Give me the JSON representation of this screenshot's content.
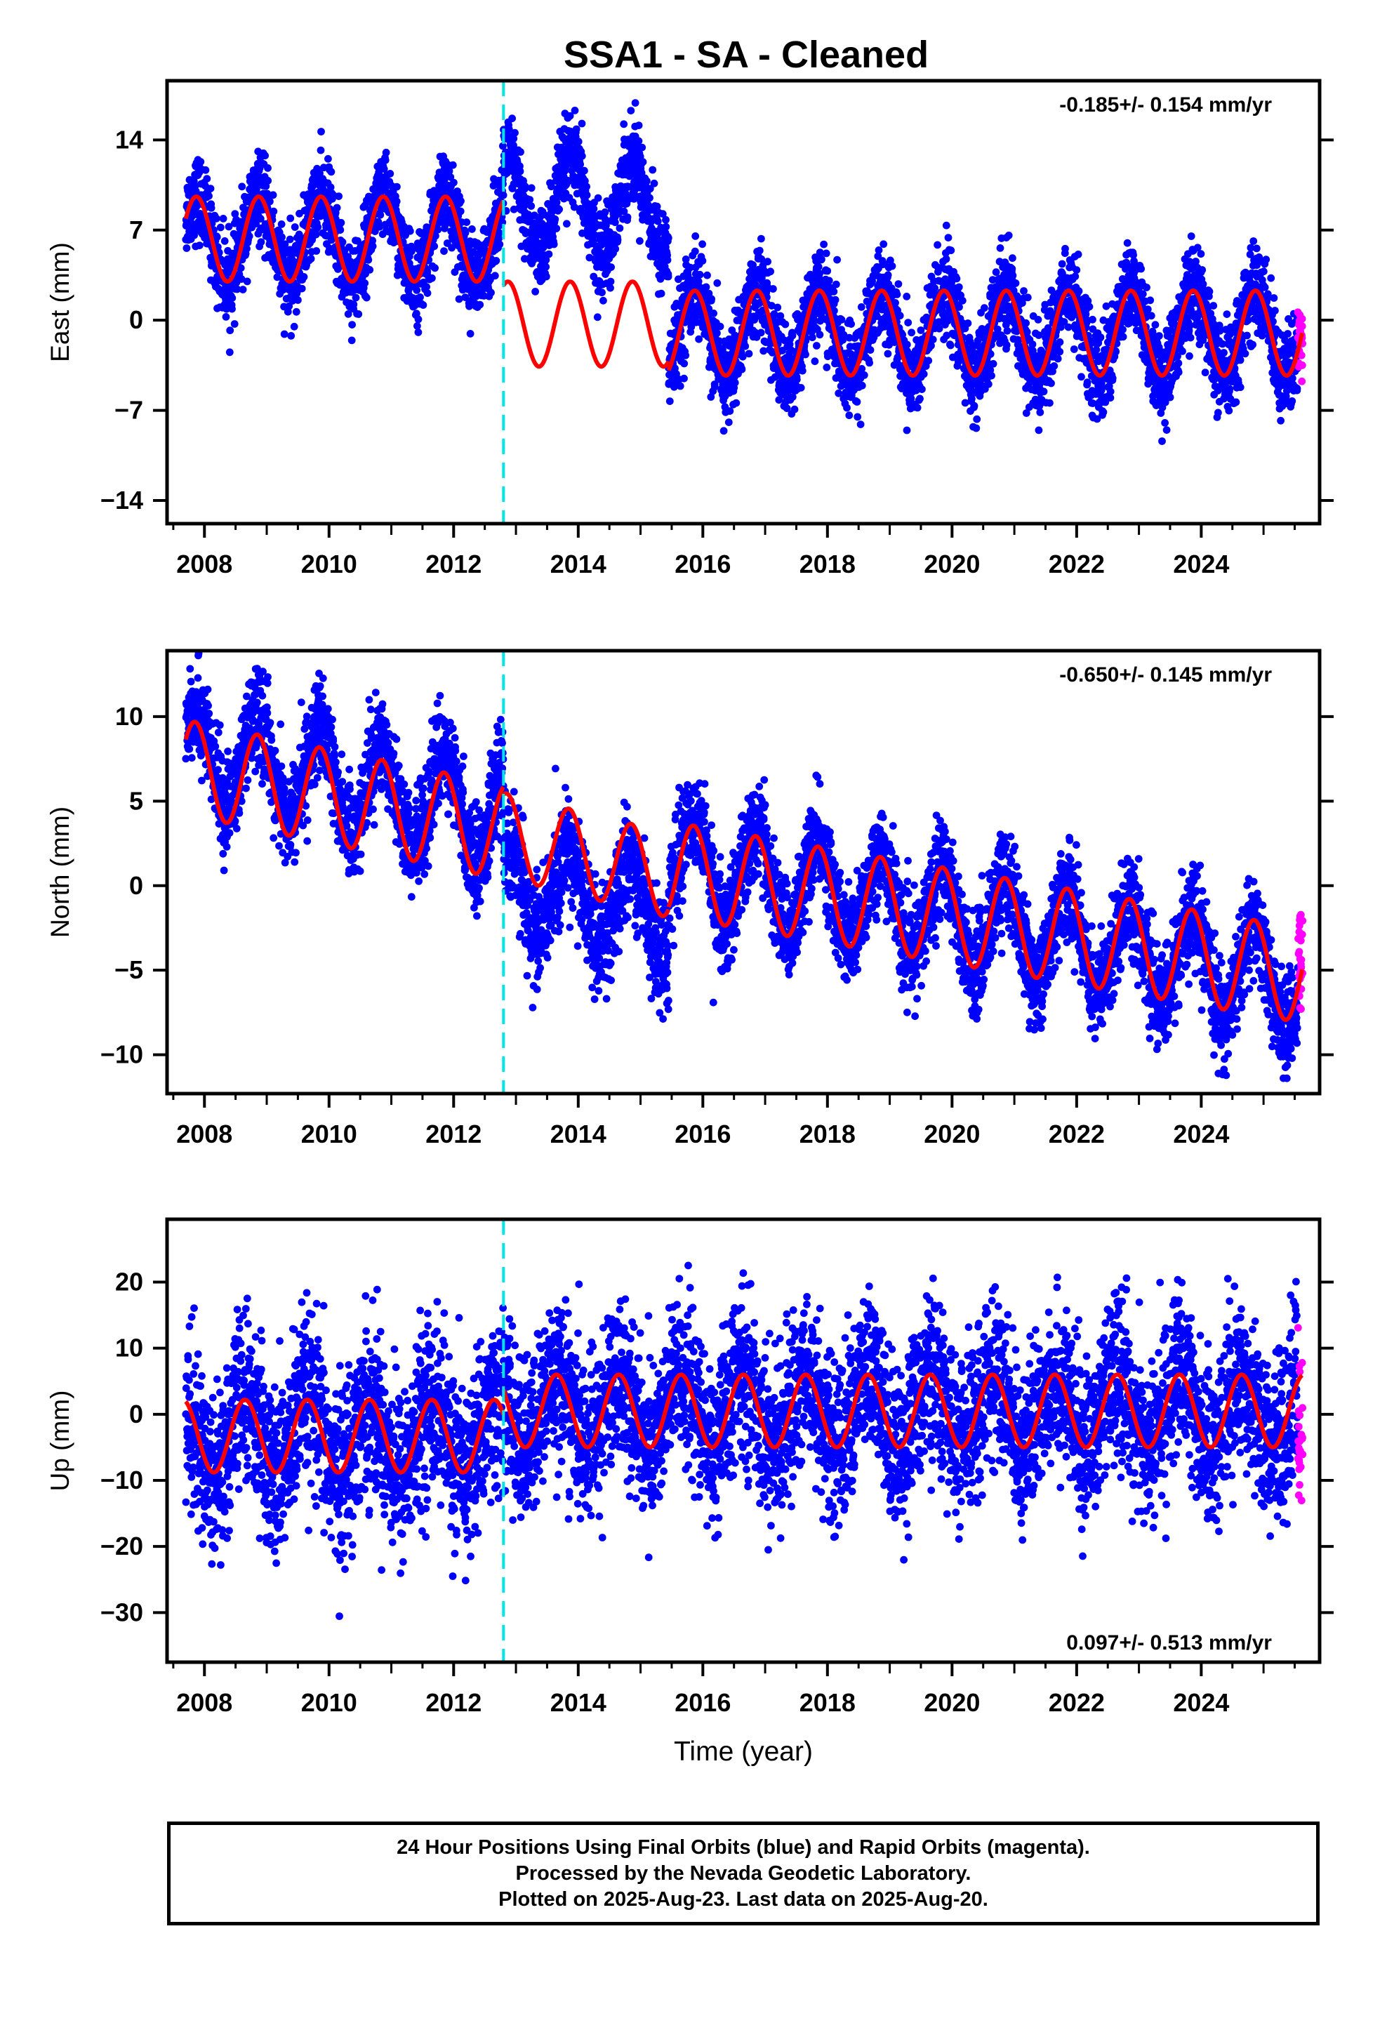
{
  "title": "SSA1  - SA - Cleaned",
  "colors": {
    "final_orbits": "#0000ff",
    "rapid_orbits": "#ff00ff",
    "model_fit": "#ff0000",
    "equipment_change": "#00e5e5"
  },
  "footer": {
    "line1": "24 Hour Positions Using Final Orbits (blue) and Rapid Orbits (magenta).",
    "line2": "Processed by the Nevada Geodetic Laboratory.",
    "line3": "Plotted on 2025-Aug-23. Last data on 2025-Aug-20."
  },
  "chart_data": [
    {
      "type": "scatter",
      "component": "east",
      "title": "",
      "xlabel": "",
      "ylabel": "East (mm)",
      "rate_label": "-0.185+/- 0.154 mm/yr",
      "xlim": [
        2007.4,
        2025.9
      ],
      "ylim": [
        -15.8,
        18.6
      ],
      "yticks": [
        14,
        7,
        0,
        -7,
        -14
      ],
      "xticks": [
        2008,
        2010,
        2012,
        2014,
        2016,
        2018,
        2020,
        2022,
        2024
      ],
      "equipment_change_year": 2012.8,
      "series": [
        {
          "name": "Final Orbits",
          "segments": [
            {
              "x0": 2007.7,
              "x1": 2012.8,
              "mean": 6.3,
              "amp": 3.3,
              "phase": 0.62,
              "noise": 1.6
            },
            {
              "x0": 2012.8,
              "x1": 2015.45,
              "mean": 8.9,
              "amp": 3.6,
              "phase": 0.62,
              "noise": 1.6
            },
            {
              "x0": 2015.45,
              "x1": 2025.55,
              "mean": -1.0,
              "amp": 3.4,
              "phase": 0.62,
              "noise": 1.7
            }
          ]
        },
        {
          "name": "Rapid Orbits",
          "x0": 2025.55,
          "x1": 2025.63,
          "mean": -1.5,
          "noise": 1.8
        },
        {
          "name": "Model Fit",
          "segments": [
            {
              "x0": 2007.7,
              "x1": 2012.8,
              "mean": 6.3,
              "amp": 3.3,
              "phase": 0.62
            },
            {
              "x0": 2012.8,
              "x1": 2015.45,
              "mean": -0.3,
              "amp": 3.3,
              "phase": 0.62
            },
            {
              "x0": 2015.45,
              "x1": 2025.62,
              "mean": -1.0,
              "amp": 3.3,
              "phase": 0.62
            }
          ]
        }
      ]
    },
    {
      "type": "scatter",
      "component": "north",
      "title": "",
      "xlabel": "",
      "ylabel": "North (mm)",
      "rate_label": "-0.650+/- 0.145 mm/yr",
      "xlim": [
        2007.4,
        2025.9
      ],
      "ylim": [
        -12.3,
        13.9
      ],
      "yticks": [
        10,
        5,
        0,
        -5,
        -10
      ],
      "xticks": [
        2008,
        2010,
        2012,
        2014,
        2016,
        2018,
        2020,
        2022,
        2024
      ],
      "equipment_change_year": 2012.8,
      "series": [
        {
          "name": "Final Orbits",
          "segments": [
            {
              "x0": 2007.7,
              "x1": 2012.8,
              "start": 8.0,
              "slope": -0.75,
              "amp": 2.8,
              "phase": 0.6,
              "noise": 1.4
            },
            {
              "x0": 2012.8,
              "x1": 2015.45,
              "start": 0.0,
              "slope": -0.6,
              "amp": 2.6,
              "phase": 0.6,
              "noise": 1.6
            },
            {
              "x0": 2015.45,
              "x1": 2025.55,
              "start": 1.5,
              "slope": -0.72,
              "amp": 2.8,
              "phase": 0.6,
              "noise": 1.4
            }
          ]
        },
        {
          "name": "Rapid Orbits",
          "x0": 2025.55,
          "x1": 2025.63,
          "mean": -4.5,
          "noise": 1.6
        },
        {
          "name": "Model Fit",
          "segments": [
            {
              "x0": 2007.7,
              "x1": 2012.8,
              "start": 7.0,
              "slope": -0.75,
              "amp": 2.8,
              "phase": 0.6
            },
            {
              "x0": 2012.8,
              "x1": 2015.45,
              "start": 3.0,
              "slope": -0.9,
              "amp": 2.5,
              "phase": 0.6
            },
            {
              "x0": 2015.45,
              "x1": 2025.62,
              "start": 1.0,
              "slope": -0.62,
              "amp": 2.8,
              "phase": 0.6
            }
          ]
        }
      ]
    },
    {
      "type": "scatter",
      "component": "up",
      "title": "",
      "xlabel": "Time (year)",
      "ylabel": "Up (mm)",
      "rate_label": "0.097+/- 0.513 mm/yr",
      "xlim": [
        2007.4,
        2025.9
      ],
      "ylim": [
        -37.5,
        29.5
      ],
      "yticks": [
        20,
        10,
        0,
        -10,
        -20,
        -30
      ],
      "xticks": [
        2008,
        2010,
        2012,
        2014,
        2016,
        2018,
        2020,
        2022,
        2024
      ],
      "equipment_change_year": 2012.8,
      "series": [
        {
          "name": "Final Orbits",
          "segments": [
            {
              "x0": 2007.7,
              "x1": 2012.8,
              "mean": -3.5,
              "amp": 5.5,
              "phase": 0.4,
              "noise": 6.5
            },
            {
              "x0": 2012.8,
              "x1": 2025.55,
              "mean": 0.5,
              "amp": 5.5,
              "phase": 0.4,
              "noise": 6.0
            }
          ]
        },
        {
          "name": "Rapid Orbits",
          "x0": 2025.55,
          "x1": 2025.63,
          "mean": -3.0,
          "noise": 6.0
        },
        {
          "name": "Model Fit",
          "segments": [
            {
              "x0": 2007.7,
              "x1": 2012.8,
              "mean": -3.3,
              "amp": 5.5,
              "phase": 0.4
            },
            {
              "x0": 2012.8,
              "x1": 2025.62,
              "mean": 0.5,
              "amp": 5.5,
              "phase": 0.4
            }
          ]
        }
      ]
    }
  ]
}
